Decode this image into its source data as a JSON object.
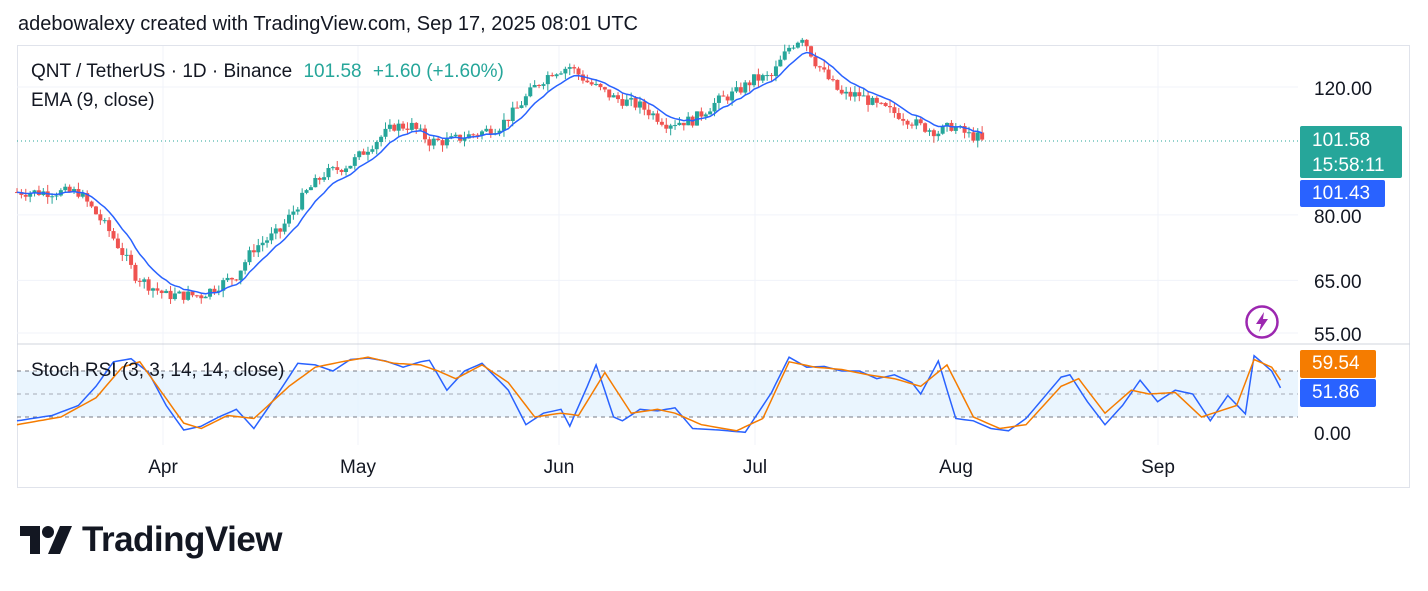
{
  "header": {
    "attribution": "adebowalexy created with TradingView.com, Sep 17, 2025 08:01 UTC"
  },
  "legend": {
    "symbol": "QNT / TetherUS · 1D · Binance",
    "price": "101.58",
    "change": "+1.60 (+1.60%)",
    "ema": "EMA (9, close)",
    "stoch": "Stoch RSI (3, 3, 14, 14, close)"
  },
  "price_tags": {
    "last": "101.58",
    "countdown": "15:58:11",
    "ema": "101.43",
    "stoch_d": "59.54",
    "stoch_k": "51.86"
  },
  "price_axis_labels": [
    "120.00",
    "80.00",
    "65.00",
    "55.00",
    "0.00"
  ],
  "time_axis_labels": [
    "Apr",
    "May",
    "Jun",
    "Jul",
    "Aug",
    "Sep"
  ],
  "brand": {
    "name": "TradingView"
  },
  "icons": {
    "lightning": "lightning-icon"
  },
  "colors": {
    "up": "#26a69a",
    "down": "#ef5350",
    "ema": "#2962ff",
    "k": "#2962ff",
    "d": "#f57c00",
    "band": "#e3f2fd",
    "accent": "#9c27b0"
  },
  "chart_data": [
    {
      "type": "candlestick",
      "title": "QNT / TetherUS · 1D · Binance",
      "scale": "log",
      "y_ticks": [
        120,
        80,
        65,
        55
      ],
      "ylim": [
        52,
        150
      ],
      "x_labels": [
        "Apr",
        "May",
        "Jun",
        "Jul",
        "Aug",
        "Sep"
      ],
      "anchors": [
        [
          70,
          86
        ],
        [
          76,
          86
        ],
        [
          84,
          86
        ],
        [
          91,
          76
        ],
        [
          97,
          66
        ],
        [
          100,
          64
        ],
        [
          104,
          62
        ],
        [
          112,
          62
        ],
        [
          120,
          66
        ],
        [
          124,
          72
        ],
        [
          130,
          76
        ],
        [
          136,
          86
        ],
        [
          140,
          91
        ],
        [
          146,
          94
        ],
        [
          150,
          99
        ],
        [
          156,
          106
        ],
        [
          160,
          106
        ],
        [
          164,
          101
        ],
        [
          168,
          101
        ],
        [
          176,
          104
        ],
        [
          180,
          106
        ],
        [
          184,
          112
        ],
        [
          188,
          120
        ],
        [
          192,
          126
        ],
        [
          196,
          128
        ],
        [
          200,
          122
        ],
        [
          206,
          116
        ],
        [
          212,
          113
        ],
        [
          218,
          107
        ],
        [
          224,
          108
        ],
        [
          230,
          115
        ],
        [
          234,
          118
        ],
        [
          238,
          123
        ],
        [
          242,
          124
        ],
        [
          246,
          136
        ],
        [
          249,
          141
        ],
        [
          252,
          130
        ],
        [
          255,
          123
        ],
        [
          258,
          117
        ],
        [
          262,
          117
        ],
        [
          266,
          113
        ],
        [
          271,
          110
        ],
        [
          276,
          106
        ],
        [
          280,
          104
        ],
        [
          283,
          106
        ],
        [
          287,
          103
        ],
        [
          290,
          102
        ]
      ],
      "ema": {
        "name": "EMA (9, close)",
        "last": 101.43
      },
      "last_price": 101.58,
      "change": "+1.60 (+1.60%)"
    },
    {
      "type": "line",
      "title": "Stoch RSI (3, 3, 14, 14, close)",
      "ylim": [
        0,
        100
      ],
      "band": [
        20,
        80
      ],
      "series": [
        {
          "name": "K",
          "last": 51.86,
          "anchors": [
            [
              70,
              15
            ],
            [
              78,
              22
            ],
            [
              84,
              35
            ],
            [
              88,
              60
            ],
            [
              92,
              92
            ],
            [
              96,
              96
            ],
            [
              100,
              78
            ],
            [
              104,
              35
            ],
            [
              108,
              3
            ],
            [
              112,
              8
            ],
            [
              116,
              20
            ],
            [
              120,
              30
            ],
            [
              124,
              5
            ],
            [
              130,
              55
            ],
            [
              134,
              90
            ],
            [
              138,
              88
            ],
            [
              142,
              80
            ],
            [
              146,
              95
            ],
            [
              150,
              97
            ],
            [
              154,
              93
            ],
            [
              158,
              85
            ],
            [
              162,
              92
            ],
            [
              164,
              94
            ],
            [
              168,
              55
            ],
            [
              172,
              80
            ],
            [
              176,
              90
            ],
            [
              182,
              55
            ],
            [
              186,
              10
            ],
            [
              190,
              25
            ],
            [
              194,
              30
            ],
            [
              196,
              8
            ],
            [
              200,
              60
            ],
            [
              202,
              88
            ],
            [
              206,
              20
            ],
            [
              208,
              15
            ],
            [
              212,
              30
            ],
            [
              216,
              28
            ],
            [
              220,
              32
            ],
            [
              224,
              5
            ],
            [
              230,
              3
            ],
            [
              236,
              0
            ],
            [
              242,
              52
            ],
            [
              246,
              98
            ],
            [
              250,
              85
            ],
            [
              254,
              86
            ],
            [
              258,
              80
            ],
            [
              262,
              80
            ],
            [
              266,
              70
            ],
            [
              270,
              75
            ],
            [
              274,
              65
            ],
            [
              276,
              50
            ],
            [
              280,
              93
            ],
            [
              284,
              18
            ],
            [
              288,
              15
            ],
            [
              292,
              5
            ],
            [
              296,
              2
            ],
            [
              300,
              18
            ],
            [
              304,
              45
            ],
            [
              308,
              72
            ],
            [
              310,
              75
            ],
            [
              314,
              40
            ],
            [
              318,
              10
            ],
            [
              322,
              35
            ],
            [
              326,
              68
            ],
            [
              330,
              40
            ],
            [
              334,
              55
            ],
            [
              338,
              50
            ],
            [
              342,
              15
            ],
            [
              346,
              48
            ],
            [
              350,
              24
            ],
            [
              352,
              100
            ],
            [
              356,
              80
            ],
            [
              358,
              58
            ]
          ]
        },
        {
          "name": "D",
          "last": 59.54,
          "anchors": [
            [
              70,
              10
            ],
            [
              80,
              20
            ],
            [
              88,
              45
            ],
            [
              94,
              85
            ],
            [
              98,
              92
            ],
            [
              102,
              60
            ],
            [
              108,
              12
            ],
            [
              112,
              5
            ],
            [
              118,
              22
            ],
            [
              124,
              18
            ],
            [
              132,
              60
            ],
            [
              138,
              85
            ],
            [
              144,
              92
            ],
            [
              150,
              98
            ],
            [
              156,
              90
            ],
            [
              162,
              88
            ],
            [
              166,
              80
            ],
            [
              170,
              70
            ],
            [
              176,
              88
            ],
            [
              182,
              65
            ],
            [
              188,
              20
            ],
            [
              194,
              25
            ],
            [
              198,
              22
            ],
            [
              204,
              78
            ],
            [
              210,
              25
            ],
            [
              216,
              30
            ],
            [
              220,
              25
            ],
            [
              226,
              10
            ],
            [
              234,
              2
            ],
            [
              240,
              18
            ],
            [
              246,
              92
            ],
            [
              252,
              85
            ],
            [
              258,
              82
            ],
            [
              264,
              75
            ],
            [
              270,
              70
            ],
            [
              276,
              60
            ],
            [
              282,
              88
            ],
            [
              288,
              20
            ],
            [
              294,
              5
            ],
            [
              300,
              10
            ],
            [
              308,
              60
            ],
            [
              312,
              70
            ],
            [
              318,
              25
            ],
            [
              324,
              55
            ],
            [
              328,
              50
            ],
            [
              334,
              52
            ],
            [
              340,
              20
            ],
            [
              348,
              35
            ],
            [
              352,
              95
            ],
            [
              356,
              85
            ],
            [
              358,
              68
            ]
          ]
        }
      ]
    }
  ]
}
